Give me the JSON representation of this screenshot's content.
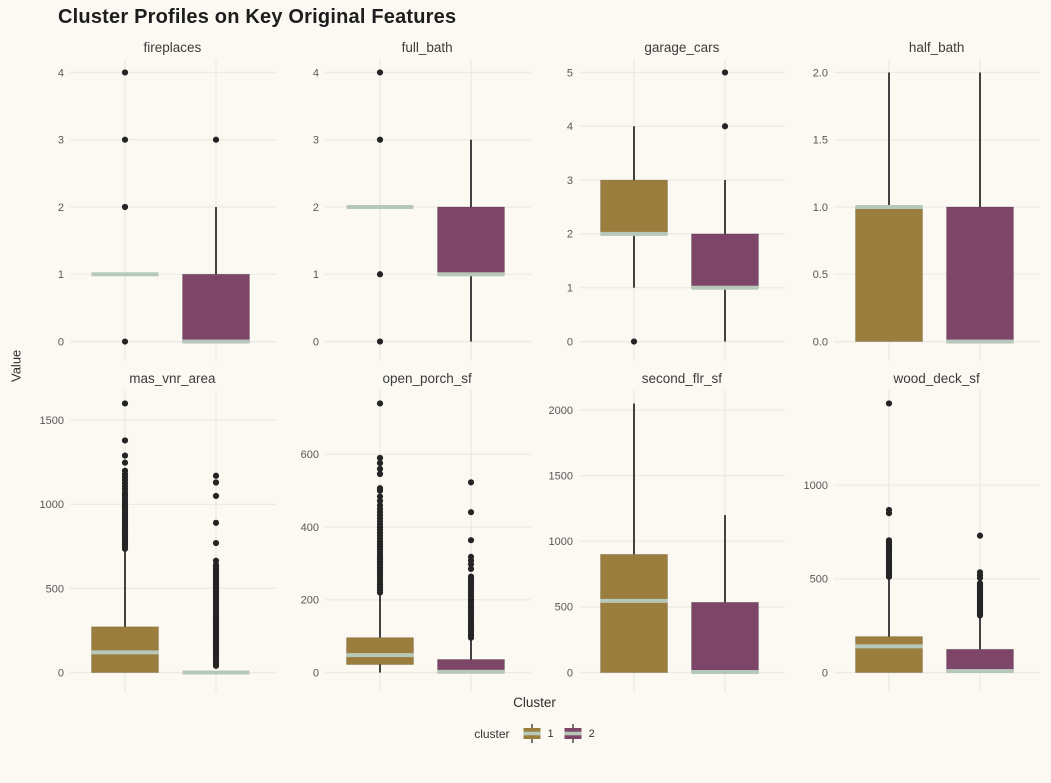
{
  "title": "Cluster Profiles on Key Original Features",
  "axis": {
    "y_label": "Value",
    "x_label": "Cluster"
  },
  "legend": {
    "title": "cluster",
    "items": [
      {
        "label": "1",
        "color_key": "cluster1"
      },
      {
        "label": "2",
        "color_key": "cluster2"
      }
    ]
  },
  "colors": {
    "cluster1": "#9b7e3d",
    "cluster2": "#7d4568",
    "median": "#b5c8ba",
    "line": "#2e2e2e",
    "outlier": "#242424",
    "grid": "#eceae2",
    "tick_text": "#575757",
    "background": "#fbf9f2"
  },
  "chart_data": {
    "type": "boxplot_facets",
    "facet_rows": 2,
    "facet_cols": 4,
    "clusters": [
      "1",
      "2"
    ],
    "facets": [
      {
        "title": "fireplaces",
        "yticks": [
          0,
          1,
          2,
          3,
          4
        ],
        "ytick_labels": [
          "0",
          "1",
          "2",
          "3",
          "4"
        ],
        "series": [
          {
            "cluster": "1",
            "q1": 1,
            "median": 1,
            "q3": 1,
            "whisker_low": 1,
            "whisker_high": 1,
            "outliers": [
              0,
              2,
              3,
              4
            ]
          },
          {
            "cluster": "2",
            "q1": 0,
            "median": 0,
            "q3": 1,
            "whisker_low": 0,
            "whisker_high": 2,
            "outliers": [
              3
            ]
          }
        ]
      },
      {
        "title": "full_bath",
        "yticks": [
          0,
          1,
          2,
          3,
          4
        ],
        "ytick_labels": [
          "0",
          "1",
          "2",
          "3",
          "4"
        ],
        "series": [
          {
            "cluster": "1",
            "q1": 2,
            "median": 2,
            "q3": 2,
            "whisker_low": 2,
            "whisker_high": 2,
            "outliers": [
              0,
              1,
              3,
              4
            ]
          },
          {
            "cluster": "2",
            "q1": 1,
            "median": 1,
            "q3": 2,
            "whisker_low": 0,
            "whisker_high": 3,
            "outliers": []
          }
        ]
      },
      {
        "title": "garage_cars",
        "yticks": [
          0,
          1,
          2,
          3,
          4,
          5
        ],
        "ytick_labels": [
          "0",
          "1",
          "2",
          "3",
          "4",
          "5"
        ],
        "series": [
          {
            "cluster": "1",
            "q1": 2,
            "median": 2,
            "q3": 3,
            "whisker_low": 1,
            "whisker_high": 4,
            "outliers": [
              0
            ]
          },
          {
            "cluster": "2",
            "q1": 1,
            "median": 1,
            "q3": 2,
            "whisker_low": 0,
            "whisker_high": 3,
            "outliers": [
              4,
              5
            ]
          }
        ]
      },
      {
        "title": "half_bath",
        "yticks": [
          0,
          0.5,
          1,
          1.5,
          2
        ],
        "ytick_labels": [
          "0.0",
          "0.5",
          "1.0",
          "1.5",
          "2.0"
        ],
        "series": [
          {
            "cluster": "1",
            "q1": 0,
            "median": 1,
            "q3": 1,
            "whisker_low": 0,
            "whisker_high": 2,
            "outliers": []
          },
          {
            "cluster": "2",
            "q1": 0,
            "median": 0,
            "q3": 1,
            "whisker_low": 0,
            "whisker_high": 2,
            "outliers": []
          }
        ]
      },
      {
        "title": "mas_vnr_area",
        "yticks": [
          0,
          500,
          1000,
          1500
        ],
        "ytick_labels": [
          "0",
          "500",
          "1000",
          "1500"
        ],
        "series": [
          {
            "cluster": "1",
            "q1": 0,
            "median": 120,
            "q3": 272,
            "whisker_low": 0,
            "whisker_high": 725,
            "outliers": [
              736,
              748,
              760,
              772,
              784,
              796,
              808,
              820,
              832,
              844,
              856,
              868,
              880,
              892,
              904,
              916,
              928,
              940,
              952,
              964,
              976,
              988,
              1000,
              1012,
              1025,
              1040,
              1056,
              1072,
              1090,
              1108,
              1126,
              1144,
              1162,
              1180,
              1200,
              1248,
              1290,
              1380,
              1600
            ]
          },
          {
            "cluster": "2",
            "q1": 0,
            "median": 0,
            "q3": 0,
            "whisker_low": 0,
            "whisker_high": 0,
            "outliers": [
              40,
              52,
              64,
              76,
              88,
              100,
              112,
              124,
              136,
              148,
              160,
              172,
              184,
              196,
              208,
              220,
              232,
              244,
              256,
              268,
              280,
              292,
              304,
              316,
              328,
              340,
              352,
              364,
              376,
              388,
              400,
              412,
              424,
              436,
              448,
              460,
              472,
              484,
              496,
              508,
              520,
              532,
              544,
              556,
              568,
              580,
              592,
              604,
              616,
              628,
              640,
              665,
              770,
              890,
              1050,
              1130,
              1170
            ]
          }
        ]
      },
      {
        "title": "open_porch_sf",
        "yticks": [
          0,
          200,
          400,
          600
        ],
        "ytick_labels": [
          "0",
          "200",
          "400",
          "600"
        ],
        "series": [
          {
            "cluster": "1",
            "q1": 22,
            "median": 48,
            "q3": 96,
            "whisker_low": 0,
            "whisker_high": 214,
            "outliers": [
              220,
              227,
              234,
              241,
              248,
              255,
              262,
              269,
              276,
              283,
              290,
              297,
              304,
              311,
              318,
              325,
              332,
              339,
              346,
              353,
              360,
              368,
              376,
              384,
              392,
              400,
              408,
              416,
              424,
              432,
              441,
              450,
              460,
              472,
              484,
              500,
              507,
              546,
              560,
              576,
              590,
              740
            ]
          },
          {
            "cluster": "2",
            "q1": 0,
            "median": 2,
            "q3": 36,
            "whisker_low": 0,
            "whisker_high": 92,
            "outliers": [
              96,
              103,
              110,
              117,
              124,
              131,
              138,
              145,
              152,
              159,
              166,
              173,
              180,
              187,
              194,
              201,
              208,
              215,
              222,
              229,
              236,
              243,
              250,
              257,
              264,
              285,
              298,
              308,
              318,
              364,
              441,
              523
            ]
          }
        ]
      },
      {
        "title": "second_flr_sf",
        "yticks": [
          0,
          500,
          1000,
          1500,
          2000
        ],
        "ytick_labels": [
          "0",
          "500",
          "1000",
          "1500",
          "2000"
        ],
        "series": [
          {
            "cluster": "1",
            "q1": 0,
            "median": 546,
            "q3": 900,
            "whisker_low": 0,
            "whisker_high": 2050,
            "outliers": []
          },
          {
            "cluster": "2",
            "q1": 0,
            "median": 4,
            "q3": 535,
            "whisker_low": 0,
            "whisker_high": 1200,
            "outliers": []
          }
        ]
      },
      {
        "title": "wood_deck_sf",
        "yticks": [
          0,
          500,
          1000
        ],
        "ytick_labels": [
          "0",
          "500",
          "1000"
        ],
        "series": [
          {
            "cluster": "1",
            "q1": 0,
            "median": 140,
            "q3": 192,
            "whisker_low": 0,
            "whisker_high": 502,
            "outliers": [
              511,
              520,
              529,
              538,
              550,
              562,
              574,
              586,
              598,
              610,
              622,
              634,
              646,
              658,
              670,
              682,
              694,
              706,
              851,
              868,
              1437
            ]
          },
          {
            "cluster": "2",
            "q1": 0,
            "median": 8,
            "q3": 124,
            "whisker_low": 0,
            "whisker_high": 298,
            "outliers": [
              305,
              314,
              323,
              332,
              341,
              350,
              359,
              368,
              377,
              386,
              395,
              404,
              413,
              422,
              431,
              440,
              449,
              458,
              467,
              476,
              505,
              520,
              535,
              731
            ]
          }
        ]
      }
    ]
  }
}
